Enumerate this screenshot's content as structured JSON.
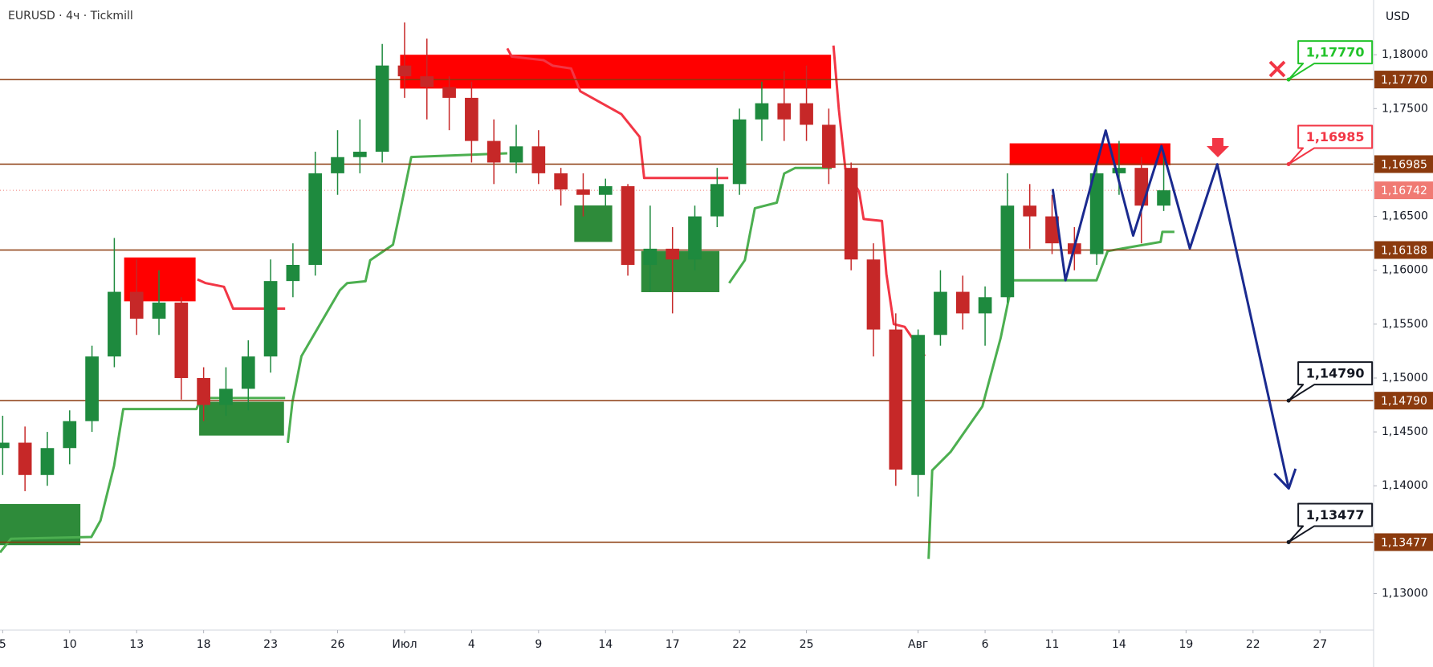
{
  "chart_data": {
    "type": "candlestick",
    "title": "EURUSD · 4ч · Tickmill",
    "y_unit": "USD",
    "xlim": [
      -0.12,
      61.4
    ],
    "ylim": [
      1.12661,
      1.18508
    ],
    "xticks": [
      {
        "value": 0,
        "label": "5"
      },
      {
        "value": 3,
        "label": "10"
      },
      {
        "value": 6,
        "label": "13"
      },
      {
        "value": 9,
        "label": "18"
      },
      {
        "value": 12,
        "label": "23"
      },
      {
        "value": 15,
        "label": "26"
      },
      {
        "value": 18,
        "label": "Июл"
      },
      {
        "value": 21,
        "label": "4"
      },
      {
        "value": 24,
        "label": "9"
      },
      {
        "value": 27,
        "label": "14"
      },
      {
        "value": 30,
        "label": "17"
      },
      {
        "value": 33,
        "label": "22"
      },
      {
        "value": 36,
        "label": "25"
      },
      {
        "value": 41,
        "label": "Авг"
      },
      {
        "value": 44,
        "label": "6"
      },
      {
        "value": 47,
        "label": "11"
      },
      {
        "value": 50,
        "label": "14"
      },
      {
        "value": 53,
        "label": "19"
      },
      {
        "value": 56,
        "label": "22"
      },
      {
        "value": 59,
        "label": "27"
      }
    ],
    "yticks": [
      {
        "value": 1.18,
        "label": "1,18000"
      },
      {
        "value": 1.175,
        "label": "1,17500"
      },
      {
        "value": 1.17,
        "label": "1,17000"
      },
      {
        "value": 1.165,
        "label": "1,16500"
      },
      {
        "value": 1.16,
        "label": "1,16000"
      },
      {
        "value": 1.155,
        "label": "1,15500"
      },
      {
        "value": 1.15,
        "label": "1,15000"
      },
      {
        "value": 1.145,
        "label": "1,14500"
      },
      {
        "value": 1.14,
        "label": "1,14000"
      },
      {
        "value": 1.135,
        "label": "1,13500"
      },
      {
        "value": 1.13,
        "label": "1,13000"
      }
    ],
    "grid": false,
    "up_color": "#1e8a3e",
    "down_color": "#c62828",
    "candles": {
      "x": [
        0,
        1,
        2,
        3,
        4,
        5,
        6,
        7,
        8,
        9,
        10,
        11,
        12,
        13,
        14,
        15,
        16,
        17,
        18,
        19,
        20,
        21,
        22,
        23,
        24,
        25,
        26,
        27,
        28,
        29,
        30,
        31,
        32,
        33,
        34,
        35,
        36,
        37,
        38,
        39,
        40,
        41,
        42,
        43,
        44,
        45,
        46,
        47,
        48,
        49,
        50,
        51,
        52
      ],
      "open": [
        1.1435,
        1.144,
        1.141,
        1.1435,
        1.146,
        1.152,
        1.158,
        1.1555,
        1.157,
        1.15,
        1.1475,
        1.149,
        1.152,
        1.159,
        1.1605,
        1.169,
        1.1705,
        1.171,
        1.179,
        1.178,
        1.177,
        1.176,
        1.172,
        1.17,
        1.1715,
        1.169,
        1.1675,
        1.167,
        1.1678,
        1.1605,
        1.162,
        1.161,
        1.165,
        1.168,
        1.174,
        1.1755,
        1.1755,
        1.1735,
        1.1695,
        1.161,
        1.1545,
        1.141,
        1.154,
        1.158,
        1.156,
        1.1575,
        1.166,
        1.165,
        1.1625,
        1.1615,
        1.169,
        1.1695,
        1.166
      ],
      "high": [
        1.1465,
        1.1455,
        1.145,
        1.147,
        1.153,
        1.163,
        1.161,
        1.16,
        1.1575,
        1.151,
        1.151,
        1.1535,
        1.161,
        1.1625,
        1.171,
        1.173,
        1.174,
        1.181,
        1.183,
        1.1815,
        1.178,
        1.1775,
        1.174,
        1.1735,
        1.173,
        1.1695,
        1.169,
        1.1685,
        1.168,
        1.166,
        1.164,
        1.166,
        1.1695,
        1.175,
        1.1775,
        1.1785,
        1.179,
        1.175,
        1.17,
        1.1625,
        1.156,
        1.1545,
        1.16,
        1.1595,
        1.1585,
        1.169,
        1.168,
        1.167,
        1.164,
        1.17,
        1.172,
        1.1705,
        1.171
      ],
      "low": [
        1.141,
        1.1395,
        1.14,
        1.142,
        1.145,
        1.151,
        1.154,
        1.154,
        1.148,
        1.146,
        1.1465,
        1.147,
        1.1505,
        1.1575,
        1.1595,
        1.167,
        1.169,
        1.17,
        1.176,
        1.174,
        1.173,
        1.17,
        1.168,
        1.169,
        1.168,
        1.166,
        1.165,
        1.166,
        1.1595,
        1.158,
        1.156,
        1.16,
        1.164,
        1.167,
        1.172,
        1.172,
        1.172,
        1.168,
        1.16,
        1.152,
        1.14,
        1.139,
        1.153,
        1.1545,
        1.153,
        1.157,
        1.162,
        1.1615,
        1.16,
        1.1605,
        1.167,
        1.1625,
        1.1655
      ],
      "close": [
        1.144,
        1.141,
        1.1435,
        1.146,
        1.152,
        1.158,
        1.1555,
        1.157,
        1.15,
        1.1475,
        1.149,
        1.152,
        1.159,
        1.1605,
        1.169,
        1.1705,
        1.171,
        1.179,
        1.178,
        1.177,
        1.176,
        1.172,
        1.17,
        1.1715,
        1.169,
        1.1675,
        1.167,
        1.1678,
        1.1605,
        1.162,
        1.161,
        1.165,
        1.168,
        1.174,
        1.1755,
        1.174,
        1.1735,
        1.1695,
        1.161,
        1.1545,
        1.1415,
        1.154,
        1.158,
        1.156,
        1.1575,
        1.166,
        1.165,
        1.1625,
        1.1615,
        1.169,
        1.1695,
        1.166,
        1.16742
      ]
    },
    "zones": [
      {
        "color": "#ff0000",
        "x": [
          17.8,
          37.1
        ],
        "y": [
          1.17686,
          1.18
        ]
      },
      {
        "color": "#ff0000",
        "x": [
          5.44,
          8.64
        ],
        "y": [
          1.15712,
          1.16119
        ]
      },
      {
        "color": "#ff0000",
        "x": [
          45.1,
          52.3
        ],
        "y": [
          1.16975,
          1.17178
        ]
      },
      {
        "color": "#2e8b3a",
        "x": [
          8.8,
          12.6
        ],
        "y": [
          1.14466,
          1.1478
        ]
      },
      {
        "color": "#2e8b3a",
        "x": [
          -0.12,
          3.48
        ],
        "y": [
          1.13449,
          1.13831
        ]
      },
      {
        "color": "#2e8b3a",
        "x": [
          25.6,
          27.3
        ],
        "y": [
          1.16263,
          1.16602
        ]
      },
      {
        "color": "#2e8b3a",
        "x": [
          28.6,
          32.1
        ],
        "y": [
          1.15797,
          1.16178
        ]
      }
    ],
    "lines": [
      {
        "color": "#4caf50",
        "x": [
          -0.12,
          0.37,
          3.97,
          4.38,
          4.99,
          5.4,
          8.68,
          8.88,
          12.65,
          null,
          12.77,
          12.98,
          13.38,
          15.1,
          15.43,
          16.25,
          16.46,
          17.48,
          17.81,
          18.3,
          22.6,
          null,
          32.54,
          33.24,
          33.69,
          34.67,
          35.0,
          35.49,
          37.13,
          null,
          41.47,
          41.63,
          42.45,
          43.88,
          44.7,
          45.23,
          48.99,
          49.49,
          51.86,
          51.94,
          52.48
        ],
        "values": [
          1.13381,
          1.13508,
          1.13525,
          1.13678,
          1.14186,
          1.14712,
          1.14712,
          1.14814,
          1.14814,
          null,
          1.14398,
          1.1478,
          1.15203,
          1.15814,
          1.15881,
          1.15898,
          1.16093,
          1.16237,
          1.16559,
          1.17051,
          1.17085,
          null,
          1.15881,
          1.16093,
          1.16576,
          1.16627,
          1.16898,
          1.16949,
          1.16949,
          null,
          1.13322,
          1.14144,
          1.14314,
          1.14737,
          1.15373,
          1.15907,
          1.15907,
          1.16178,
          1.16263,
          1.16356,
          1.16356
        ]
      },
      {
        "color": "#f23645",
        "x": [
          8.72,
          9.09,
          9.91,
          10.32,
          12.65,
          null,
          22.6,
          22.8,
          24.23,
          24.64,
          25.46,
          25.87,
          27.71,
          28.53,
          28.73,
          32.5,
          null,
          37.21,
          37.45,
          37.74,
          38.36,
          38.56,
          39.38,
          39.58,
          39.91,
          40.4,
          41.3
        ],
        "values": [
          1.15915,
          1.15881,
          1.15847,
          1.15644,
          1.15644,
          null,
          1.18059,
          1.17983,
          1.17949,
          1.17898,
          1.17873,
          1.17661,
          1.17449,
          1.17237,
          1.16856,
          1.16856,
          null,
          1.18085,
          1.17492,
          1.16941,
          1.16729,
          1.16475,
          1.16458,
          1.15966,
          1.155,
          1.15475,
          1.15203
        ]
      }
    ],
    "levels": [
      {
        "value": 1.1777,
        "label": "1,17770",
        "callout_color": "#22c32a"
      },
      {
        "value": 1.16985,
        "label": "1,16985",
        "callout_color": "#f23645"
      },
      {
        "value": 1.16188,
        "label": "1,16188"
      },
      {
        "value": 1.1479,
        "label": "1,14790",
        "callout_color": "#131722"
      },
      {
        "value": 1.13477,
        "label": "1,13477",
        "callout_color": "#131722"
      }
    ],
    "level_color": "#8b3a0e",
    "last_price": {
      "value": 1.16742,
      "label": "1,16742",
      "color": "#f07a73"
    },
    "projection": {
      "color": "#1a2a8f",
      "x": [
        47.03,
        47.6,
        49.4,
        50.63,
        51.9,
        53.17,
        54.4,
        57.6
      ],
      "values": [
        1.16754,
        1.15907,
        1.17297,
        1.16322,
        1.17153,
        1.16203,
        1.16983,
        1.13975
      ]
    }
  }
}
